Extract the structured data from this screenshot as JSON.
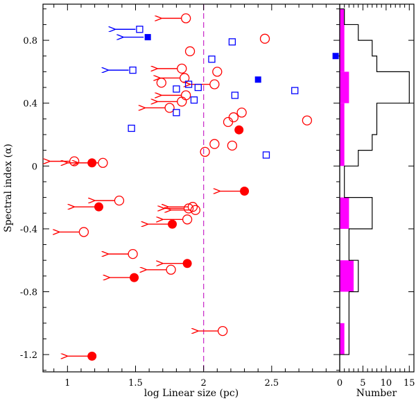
{
  "chart_data": [
    {
      "type": "scatter",
      "panel": "main",
      "xlabel": "log Linear size (pc)",
      "ylabel": "Spectral index (α)",
      "xlim": [
        0.82,
        3.0
      ],
      "ylim": [
        -1.31,
        1.03
      ],
      "x_ticks": [
        "1",
        "1.5",
        "2",
        "2.5"
      ],
      "x_tick_values": [
        1.0,
        1.5,
        2.0,
        2.5
      ],
      "y_ticks": [
        "-1.2",
        "-0.8",
        "-0.4",
        "0",
        "0.4",
        "0.8"
      ],
      "y_tick_values": [
        -1.2,
        -0.8,
        -0.4,
        0,
        0.4,
        0.8
      ],
      "threshold_line": {
        "x": 2.0,
        "style": "dashed",
        "color": "#cc33cc"
      },
      "colors": {
        "red": "#ff0000",
        "blue": "#0000ff",
        "threshold": "#cc33cc"
      },
      "series": [
        {
          "name": "red filled circles",
          "marker": "filled-circle",
          "color": "#ff0000",
          "points": [
            {
              "x": 1.18,
              "y": 0.02,
              "upper_limit": true
            },
            {
              "x": 1.23,
              "y": -0.26,
              "upper_limit": true
            },
            {
              "x": 1.49,
              "y": -0.71,
              "upper_limit": true
            },
            {
              "x": 1.18,
              "y": -1.21,
              "upper_limit": true
            },
            {
              "x": 1.77,
              "y": -0.37,
              "upper_limit": true
            },
            {
              "x": 1.88,
              "y": -0.62,
              "upper_limit": true
            },
            {
              "x": 2.26,
              "y": 0.23,
              "upper_limit": false
            },
            {
              "x": 2.3,
              "y": -0.16,
              "upper_limit": true
            }
          ]
        },
        {
          "name": "red open circles",
          "marker": "open-circle",
          "color": "#ff0000",
          "points": [
            {
              "x": 1.05,
              "y": 0.03,
              "upper_limit": true
            },
            {
              "x": 1.26,
              "y": 0.02,
              "upper_limit": true
            },
            {
              "x": 1.12,
              "y": -0.42,
              "upper_limit": true
            },
            {
              "x": 1.38,
              "y": -0.22,
              "upper_limit": true
            },
            {
              "x": 1.48,
              "y": -0.56,
              "upper_limit": true
            },
            {
              "x": 1.76,
              "y": -0.66,
              "upper_limit": true
            },
            {
              "x": 1.87,
              "y": 0.94,
              "upper_limit": true
            },
            {
              "x": 1.84,
              "y": 0.62,
              "upper_limit": true
            },
            {
              "x": 1.86,
              "y": 0.56,
              "upper_limit": true
            },
            {
              "x": 1.84,
              "y": 0.41,
              "upper_limit": true
            },
            {
              "x": 1.87,
              "y": 0.45,
              "upper_limit": true
            },
            {
              "x": 1.75,
              "y": 0.37,
              "upper_limit": true
            },
            {
              "x": 2.08,
              "y": 0.52,
              "upper_limit": true
            },
            {
              "x": 1.89,
              "y": -0.27,
              "upper_limit": true
            },
            {
              "x": 1.92,
              "y": -0.26,
              "upper_limit": true
            },
            {
              "x": 1.94,
              "y": -0.28,
              "upper_limit": true
            },
            {
              "x": 1.88,
              "y": -0.34,
              "upper_limit": true
            },
            {
              "x": 2.14,
              "y": -1.05,
              "upper_limit": true
            },
            {
              "x": 1.9,
              "y": 0.73,
              "upper_limit": false
            },
            {
              "x": 1.69,
              "y": 0.53,
              "upper_limit": false
            },
            {
              "x": 2.1,
              "y": 0.6,
              "upper_limit": false
            },
            {
              "x": 2.45,
              "y": 0.81,
              "upper_limit": false
            },
            {
              "x": 2.22,
              "y": 0.31,
              "upper_limit": false
            },
            {
              "x": 2.28,
              "y": 0.34,
              "upper_limit": false
            },
            {
              "x": 2.18,
              "y": 0.28,
              "upper_limit": false
            },
            {
              "x": 2.08,
              "y": 0.14,
              "upper_limit": false
            },
            {
              "x": 2.21,
              "y": 0.13,
              "upper_limit": false
            },
            {
              "x": 2.01,
              "y": 0.09,
              "upper_limit": false
            },
            {
              "x": 2.76,
              "y": 0.29,
              "upper_limit": false
            }
          ]
        },
        {
          "name": "blue filled squares",
          "marker": "filled-square",
          "color": "#0000ff",
          "points": [
            {
              "x": 1.59,
              "y": 0.82,
              "upper_limit": true
            },
            {
              "x": 2.4,
              "y": 0.55,
              "upper_limit": false
            },
            {
              "x": 2.97,
              "y": 0.7,
              "upper_limit": false
            }
          ]
        },
        {
          "name": "blue open squares",
          "marker": "open-square",
          "color": "#0000ff",
          "points": [
            {
              "x": 1.53,
              "y": 0.87,
              "upper_limit": true
            },
            {
              "x": 1.48,
              "y": 0.61,
              "upper_limit": true
            },
            {
              "x": 1.47,
              "y": 0.24,
              "upper_limit": false
            },
            {
              "x": 1.8,
              "y": 0.49,
              "upper_limit": false
            },
            {
              "x": 1.8,
              "y": 0.34,
              "upper_limit": false
            },
            {
              "x": 1.89,
              "y": 0.52,
              "upper_limit": false
            },
            {
              "x": 1.93,
              "y": 0.42,
              "upper_limit": false
            },
            {
              "x": 1.96,
              "y": 0.5,
              "upper_limit": false
            },
            {
              "x": 2.06,
              "y": 0.68,
              "upper_limit": false
            },
            {
              "x": 2.21,
              "y": 0.79,
              "upper_limit": false
            },
            {
              "x": 2.23,
              "y": 0.45,
              "upper_limit": false
            },
            {
              "x": 2.46,
              "y": 0.07,
              "upper_limit": false
            },
            {
              "x": 2.67,
              "y": 0.48,
              "upper_limit": false
            }
          ]
        }
      ]
    },
    {
      "type": "histogram",
      "panel": "side",
      "orientation": "horizontal",
      "xlabel": "Number",
      "xlim": [
        0,
        16
      ],
      "x_ticks": [
        "0",
        "5",
        "10",
        "15"
      ],
      "x_tick_values": [
        0,
        5,
        10,
        15
      ],
      "ylim": [
        -1.31,
        1.03
      ],
      "outline": {
        "color": "#000000",
        "bins": [
          {
            "y0": 0.9,
            "y1": 1.0,
            "count": 1
          },
          {
            "y0": 0.8,
            "y1": 0.9,
            "count": 4
          },
          {
            "y0": 0.7,
            "y1": 0.8,
            "count": 7
          },
          {
            "y0": 0.6,
            "y1": 0.7,
            "count": 8
          },
          {
            "y0": 0.4,
            "y1": 0.6,
            "count": 15
          },
          {
            "y0": 0.2,
            "y1": 0.4,
            "count": 8
          },
          {
            "y0": 0.1,
            "y1": 0.2,
            "count": 7
          },
          {
            "y0": 0.0,
            "y1": 0.1,
            "count": 4
          },
          {
            "y0": -0.2,
            "y1": 0.0,
            "count": 1
          },
          {
            "y0": -0.4,
            "y1": -0.2,
            "count": 7
          },
          {
            "y0": -0.6,
            "y1": -0.4,
            "count": 2
          },
          {
            "y0": -0.8,
            "y1": -0.6,
            "count": 4
          },
          {
            "y0": -1.0,
            "y1": -0.8,
            "count": 2
          },
          {
            "y0": -1.1,
            "y1": -1.0,
            "count": 2
          },
          {
            "y0": -1.2,
            "y1": -1.1,
            "count": 2
          }
        ]
      },
      "filled": {
        "color": "#ff00ff",
        "bins": [
          {
            "y0": 0.9,
            "y1": 1.0,
            "count": 1
          },
          {
            "y0": 0.6,
            "y1": 0.9,
            "count": 1
          },
          {
            "y0": 0.4,
            "y1": 0.6,
            "count": 2
          },
          {
            "y0": 0.0,
            "y1": 0.4,
            "count": 1
          },
          {
            "y0": -0.2,
            "y1": 0.0,
            "count": 0
          },
          {
            "y0": -0.4,
            "y1": -0.2,
            "count": 2
          },
          {
            "y0": -0.8,
            "y1": -0.6,
            "count": 3
          },
          {
            "y0": -1.2,
            "y1": -1.0,
            "count": 1
          }
        ]
      }
    }
  ]
}
